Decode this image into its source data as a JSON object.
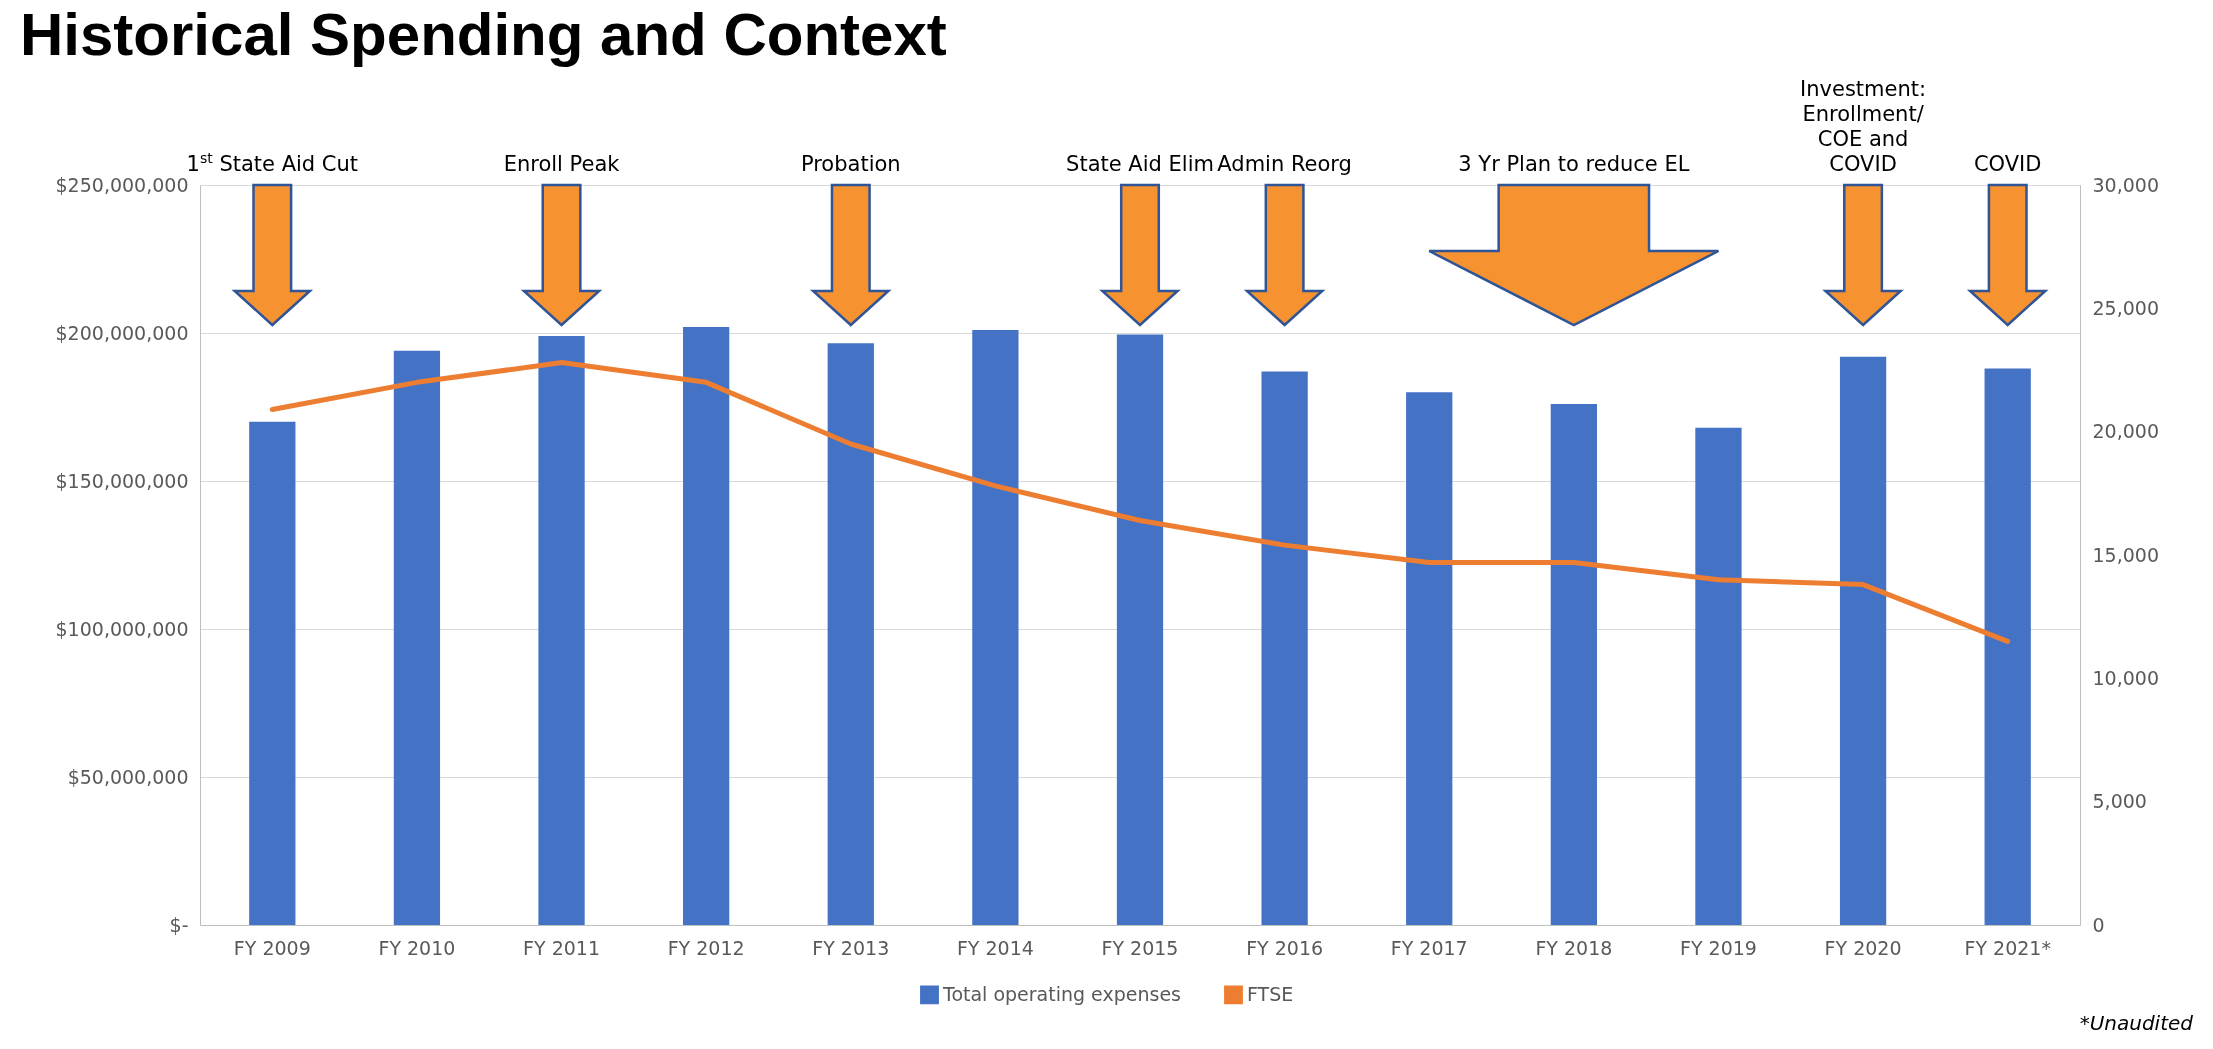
{
  "chart_data": {
    "type": "bar",
    "title": "Historical Spending and Context",
    "categories": [
      "FY 2009",
      "FY 2010",
      "FY 2011",
      "FY 2012",
      "FY 2013",
      "FY 2014",
      "FY 2015",
      "FY 2016",
      "FY 2017",
      "FY 2018",
      "FY 2019",
      "FY 2020",
      "FY 2021*"
    ],
    "series": [
      {
        "name": "Total operating expenses",
        "color": "#4472c4",
        "values": [
          170000000,
          194000000,
          199000000,
          202000000,
          196500000,
          201000000,
          199500000,
          187000000,
          180000000,
          176000000,
          168000000,
          192000000,
          188000000
        ]
      },
      {
        "name": "FTSE",
        "type": "line",
        "axis": "y2",
        "color": "#ed7d31",
        "values": [
          20900,
          22000,
          22800,
          22000,
          19500,
          17800,
          16400,
          15400,
          14700,
          14700,
          14000,
          13800,
          11500
        ]
      }
    ],
    "ylim": [
      0,
      250000000
    ],
    "yticks": [
      {
        "value": 0,
        "label": "$-"
      },
      {
        "value": 50000000,
        "label": "$50,000,000"
      },
      {
        "value": 100000000,
        "label": "$100,000,000"
      },
      {
        "value": 150000000,
        "label": "$150,000,000"
      },
      {
        "value": 200000000,
        "label": "$200,000,000"
      },
      {
        "value": 250000000,
        "label": "$250,000,000"
      }
    ],
    "y2lim": [
      0,
      30000
    ],
    "y2ticks": [
      0,
      {
        "value": 5000,
        "label": "5,000"
      },
      {
        "value": 10000,
        "label": "10,000"
      },
      {
        "value": 15000,
        "label": "15,000"
      },
      {
        "value": 20000,
        "label": "20,000"
      },
      {
        "value": 25000,
        "label": "25,000"
      },
      {
        "value": 30000,
        "label": "30,000"
      }
    ],
    "grid": "y",
    "legend": "bottom",
    "annotations": [
      "1$^{st}$ State Aid Cut",
      "Enroll Peak",
      "Probation",
      "State Aid Elim",
      "Admin Reorg",
      "3 Yr Plan to reduce EL",
      "Investment:\nEnrollment/\nCOE and\nCOVID",
      "COVID",
      "*Unaudited"
    ]
  }
}
